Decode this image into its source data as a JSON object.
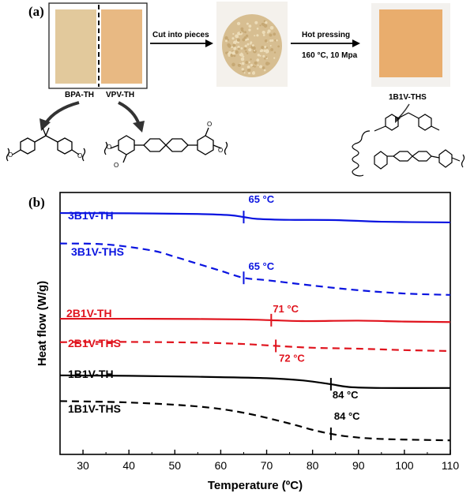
{
  "panel_a": {
    "label": "(a)",
    "sample_left_label": "BPA-TH",
    "sample_right_label": "VPV-TH",
    "step1_label": "Cut into pieces",
    "step2_label": "Hot pressing",
    "step2_conditions": "160 °C, 10 Mpa",
    "product_label": "1B1V-THS",
    "colors": {
      "bpa_film": "#e2c99c",
      "vpv_film": "#e8b983",
      "pieces": "#d7be91",
      "pressed": "#e9ad6d"
    }
  },
  "panel_b": {
    "label": "(b)",
    "chart_data": {
      "type": "line",
      "xlabel": "Temperature (ºC)",
      "ylabel": "Heat flow (W/g)",
      "xlim": [
        25,
        110
      ],
      "xticks": [
        "30",
        "40",
        "50",
        "60",
        "70",
        "80",
        "90",
        "100",
        "110"
      ],
      "y_ticks_shown": false,
      "series": [
        {
          "name": "3B1V-TH",
          "color": "#0a14e0",
          "dash": false,
          "tg": 65,
          "tg_label": "65 °C",
          "x": [
            25,
            40,
            55,
            62,
            65,
            68,
            75,
            85,
            95,
            110
          ],
          "y": [
            9.72,
            9.71,
            9.68,
            9.63,
            9.55,
            9.47,
            9.43,
            9.42,
            9.35,
            9.32
          ]
        },
        {
          "name": "3B1V-THS",
          "color": "#0a14e0",
          "dash": true,
          "tg": 65,
          "tg_label": "65 °C",
          "x": [
            25,
            35,
            45,
            50,
            55,
            60,
            65,
            70,
            80,
            90,
            100,
            110
          ],
          "y": [
            8.42,
            8.38,
            8.12,
            7.85,
            7.55,
            7.25,
            6.95,
            6.85,
            6.62,
            6.42,
            6.28,
            6.22
          ]
        },
        {
          "name": "2B1V-TH",
          "color": "#e0141e",
          "dash": false,
          "tg": 71,
          "tg_label": "71 °C",
          "x": [
            25,
            40,
            55,
            65,
            71,
            78,
            90,
            100,
            110
          ],
          "y": [
            5.2,
            5.2,
            5.19,
            5.17,
            5.14,
            5.1,
            5.12,
            5.08,
            5.06
          ]
        },
        {
          "name": "2B1V-THS",
          "color": "#e0141e",
          "dash": true,
          "tg": 72,
          "tg_label": "72 °C",
          "x": [
            25,
            40,
            55,
            65,
            72,
            80,
            90,
            100,
            110
          ],
          "y": [
            4.2,
            4.21,
            4.18,
            4.12,
            4.04,
            3.96,
            3.92,
            3.86,
            3.82
          ]
        },
        {
          "name": "1B1V-TH",
          "color": "#000000",
          "dash": false,
          "tg": 84,
          "tg_label": "84 °C",
          "x": [
            25,
            40,
            55,
            70,
            78,
            84,
            88,
            95,
            110
          ],
          "y": [
            2.78,
            2.76,
            2.72,
            2.66,
            2.56,
            2.4,
            2.28,
            2.24,
            2.24
          ]
        },
        {
          "name": "1B1V-THS",
          "color": "#000000",
          "dash": true,
          "tg": 84,
          "tg_label": "84 °C",
          "x": [
            25,
            40,
            55,
            65,
            75,
            80,
            84,
            88,
            95,
            110
          ],
          "y": [
            1.68,
            1.62,
            1.45,
            1.18,
            0.72,
            0.45,
            0.28,
            0.16,
            0.06,
            0.0
          ]
        }
      ]
    }
  }
}
